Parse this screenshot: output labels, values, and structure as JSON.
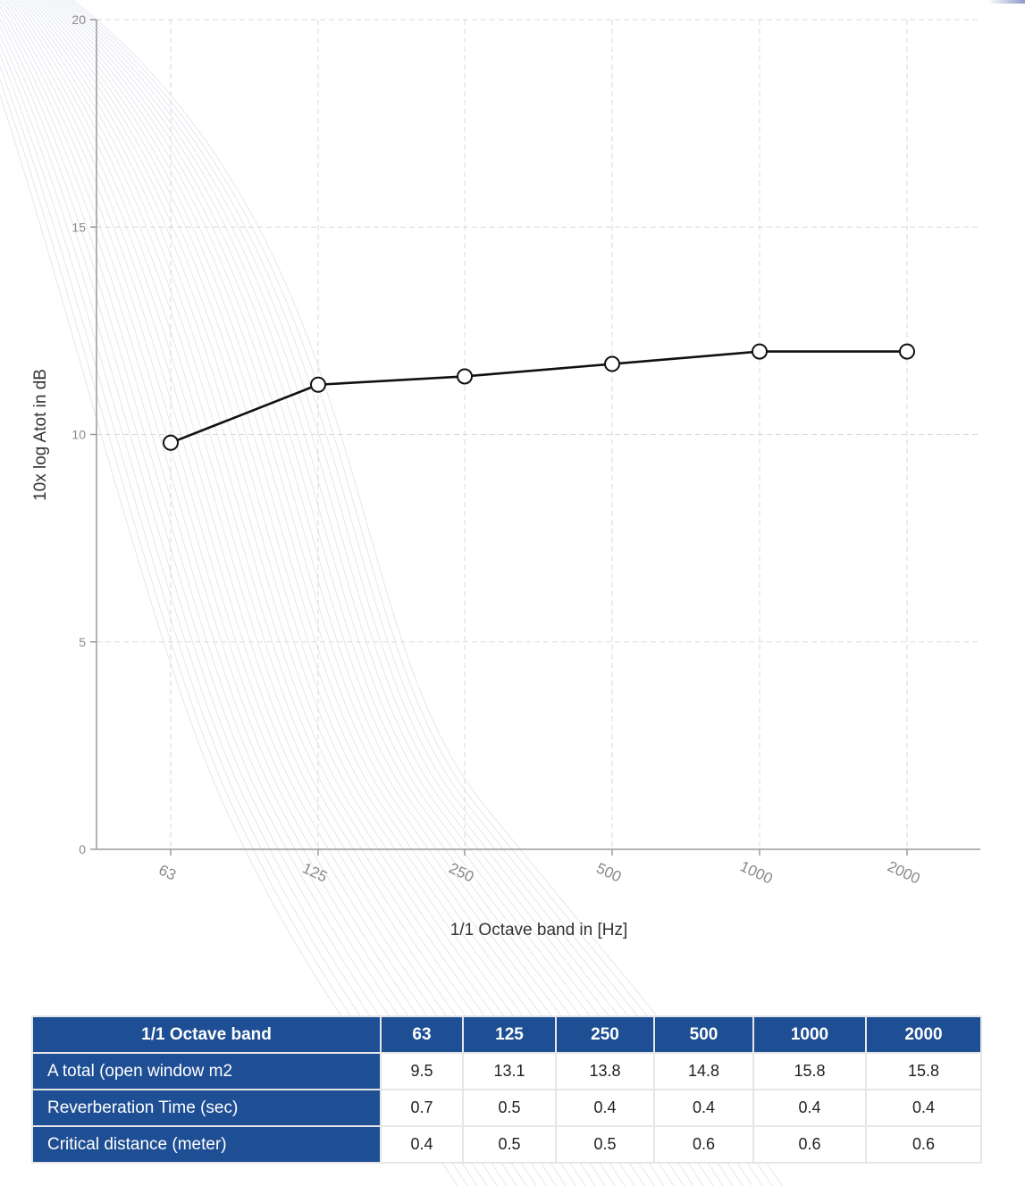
{
  "chart_data": {
    "type": "line",
    "title": "",
    "xlabel": "1/1 Octave band in [Hz]",
    "ylabel": "10x log Atot in dB",
    "categories": [
      "63",
      "125",
      "250",
      "500",
      "1000",
      "2000"
    ],
    "series": [
      {
        "values": [
          9.8,
          11.2,
          11.4,
          11.7,
          12.0,
          12.0
        ]
      }
    ],
    "ylim": [
      0,
      20
    ],
    "yticks": [
      "0",
      "5",
      "10",
      "15",
      "20"
    ],
    "grid": true,
    "line_color": "#111111",
    "marker": "open-circle"
  },
  "table": {
    "header_label": "1/1 Octave band",
    "bands": [
      "63",
      "125",
      "250",
      "500",
      "1000",
      "2000"
    ],
    "rows": [
      {
        "label": "A total (open window m2",
        "values": [
          "9.5",
          "13.1",
          "13.8",
          "14.8",
          "15.8",
          "15.8"
        ]
      },
      {
        "label": "Reverberation Time (sec)",
        "values": [
          "0.7",
          "0.5",
          "0.4",
          "0.4",
          "0.4",
          "0.4"
        ]
      },
      {
        "label": "Critical distance (meter)",
        "values": [
          "0.4",
          "0.5",
          "0.5",
          "0.6",
          "0.6",
          "0.6"
        ]
      }
    ],
    "header_color": "#1e4e94"
  }
}
